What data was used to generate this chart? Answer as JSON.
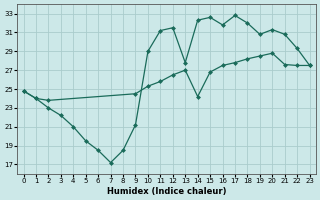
{
  "xlabel": "Humidex (Indice chaleur)",
  "xlim": [
    -0.5,
    23.5
  ],
  "ylim": [
    16,
    34
  ],
  "yticks": [
    17,
    19,
    21,
    23,
    25,
    27,
    29,
    31,
    33
  ],
  "xticks": [
    0,
    1,
    2,
    3,
    4,
    5,
    6,
    7,
    8,
    9,
    10,
    11,
    12,
    13,
    14,
    15,
    16,
    17,
    18,
    19,
    20,
    21,
    22,
    23
  ],
  "bg_color": "#cce8e8",
  "grid_color": "#aacccc",
  "line_color": "#1a6b5a",
  "line1_x": [
    0,
    1,
    2,
    3,
    4,
    5,
    6,
    7,
    8,
    9,
    10,
    11,
    12,
    13,
    14,
    15,
    16,
    17,
    18,
    19,
    20,
    21,
    22,
    23
  ],
  "line1_y": [
    24.8,
    24.0,
    23.0,
    22.2,
    21.0,
    19.5,
    18.5,
    17.2,
    18.5,
    21.2,
    29.0,
    31.2,
    31.5,
    27.8,
    32.3,
    32.6,
    31.8,
    32.8,
    32.0,
    30.8,
    31.3,
    30.8,
    29.3,
    27.5
  ],
  "line2_x": [
    0,
    1,
    2,
    9,
    10,
    11,
    12,
    13,
    14,
    15,
    16,
    17,
    18,
    19,
    20,
    21,
    22,
    23
  ],
  "line2_y": [
    24.8,
    24.0,
    23.8,
    24.5,
    25.3,
    25.8,
    26.5,
    27.0,
    24.2,
    26.8,
    27.5,
    27.8,
    28.2,
    28.5,
    28.8,
    27.6,
    27.5,
    27.5
  ]
}
